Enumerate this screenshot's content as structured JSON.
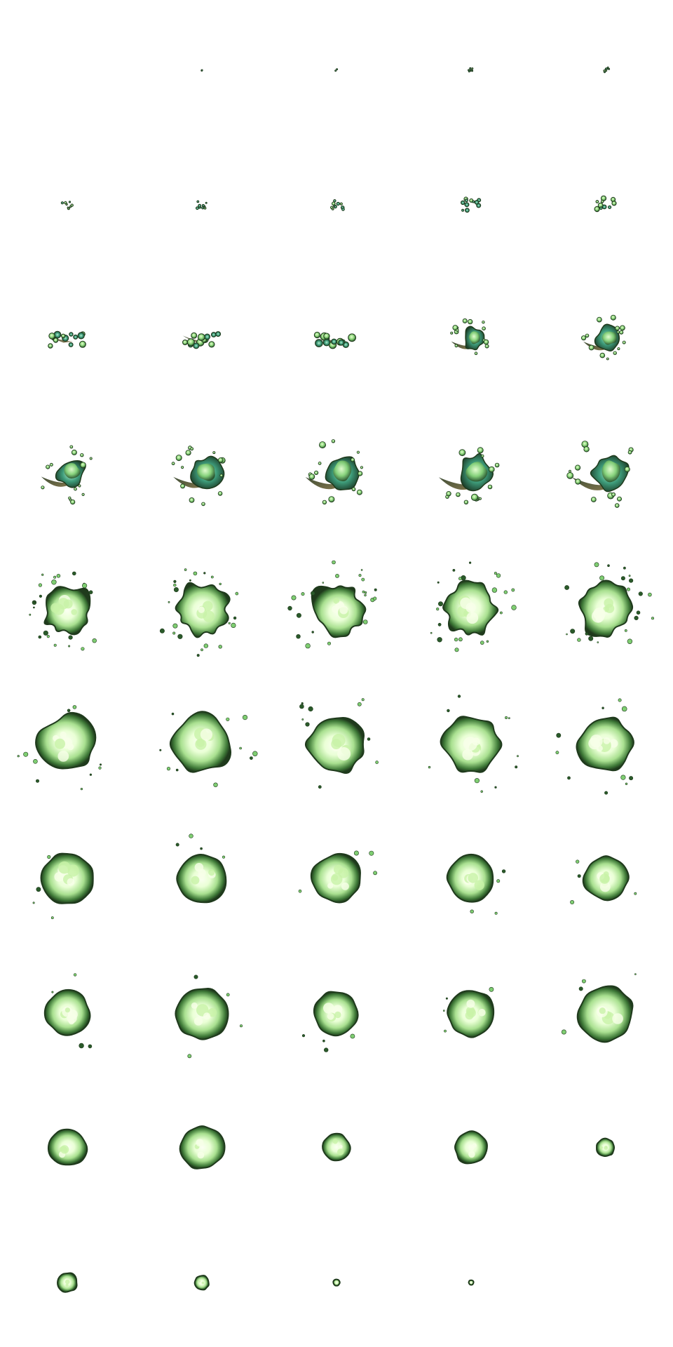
{
  "sprite_sheet": {
    "background": "#ffffff",
    "columns": 5,
    "rows": 10,
    "palette": {
      "rim": "#1f3a1c",
      "glow": "#f7ffe8",
      "light_green": "#c8f2a8",
      "mid_green": "#7fce72",
      "teal": "#3e9c7a",
      "dark_green": "#2a5a2a",
      "brown": "#5b4a2a"
    },
    "frames": [
      {
        "i": 0,
        "size": 0.0,
        "phase": "empty"
      },
      {
        "i": 1,
        "size": 0.01,
        "phase": "spark"
      },
      {
        "i": 2,
        "size": 0.03,
        "phase": "spark"
      },
      {
        "i": 3,
        "size": 0.05,
        "phase": "blobs"
      },
      {
        "i": 4,
        "size": 0.07,
        "phase": "blobs"
      },
      {
        "i": 5,
        "size": 0.09,
        "phase": "blobs"
      },
      {
        "i": 6,
        "size": 0.1,
        "phase": "blobs"
      },
      {
        "i": 7,
        "size": 0.12,
        "phase": "blobs"
      },
      {
        "i": 8,
        "size": 0.15,
        "phase": "blobs"
      },
      {
        "i": 9,
        "size": 0.18,
        "phase": "blobs"
      },
      {
        "i": 10,
        "size": 0.25,
        "phase": "stream"
      },
      {
        "i": 11,
        "size": 0.26,
        "phase": "stream"
      },
      {
        "i": 12,
        "size": 0.27,
        "phase": "stream"
      },
      {
        "i": 13,
        "size": 0.32,
        "phase": "swirl"
      },
      {
        "i": 14,
        "size": 0.36,
        "phase": "swirl"
      },
      {
        "i": 15,
        "size": 0.42,
        "phase": "swirl"
      },
      {
        "i": 16,
        "size": 0.46,
        "phase": "swirl"
      },
      {
        "i": 17,
        "size": 0.5,
        "phase": "swirl"
      },
      {
        "i": 18,
        "size": 0.52,
        "phase": "swirl"
      },
      {
        "i": 19,
        "size": 0.54,
        "phase": "swirl"
      },
      {
        "i": 20,
        "size": 0.6,
        "phase": "burst"
      },
      {
        "i": 21,
        "size": 0.62,
        "phase": "burst"
      },
      {
        "i": 22,
        "size": 0.62,
        "phase": "burst"
      },
      {
        "i": 23,
        "size": 0.62,
        "phase": "burst"
      },
      {
        "i": 24,
        "size": 0.64,
        "phase": "burst"
      },
      {
        "i": 25,
        "size": 0.7,
        "phase": "bright"
      },
      {
        "i": 26,
        "size": 0.72,
        "phase": "bright"
      },
      {
        "i": 27,
        "size": 0.72,
        "phase": "bright"
      },
      {
        "i": 28,
        "size": 0.7,
        "phase": "bright"
      },
      {
        "i": 29,
        "size": 0.66,
        "phase": "bright"
      },
      {
        "i": 30,
        "size": 0.62,
        "phase": "core"
      },
      {
        "i": 31,
        "size": 0.6,
        "phase": "core"
      },
      {
        "i": 32,
        "size": 0.6,
        "phase": "core"
      },
      {
        "i": 33,
        "size": 0.58,
        "phase": "core"
      },
      {
        "i": 34,
        "size": 0.54,
        "phase": "core"
      },
      {
        "i": 35,
        "size": 0.54,
        "phase": "core"
      },
      {
        "i": 36,
        "size": 0.64,
        "phase": "core"
      },
      {
        "i": 37,
        "size": 0.54,
        "phase": "core"
      },
      {
        "i": 38,
        "size": 0.58,
        "phase": "core"
      },
      {
        "i": 39,
        "size": 0.68,
        "phase": "core"
      },
      {
        "i": 40,
        "size": 0.46,
        "phase": "fade"
      },
      {
        "i": 41,
        "size": 0.54,
        "phase": "fade"
      },
      {
        "i": 42,
        "size": 0.34,
        "phase": "fade"
      },
      {
        "i": 43,
        "size": 0.4,
        "phase": "fade"
      },
      {
        "i": 44,
        "size": 0.22,
        "phase": "fade"
      },
      {
        "i": 45,
        "size": 0.24,
        "phase": "fade"
      },
      {
        "i": 46,
        "size": 0.18,
        "phase": "fade"
      },
      {
        "i": 47,
        "size": 0.08,
        "phase": "fade"
      },
      {
        "i": 48,
        "size": 0.06,
        "phase": "fade"
      },
      {
        "i": 49,
        "size": 0.0,
        "phase": "empty"
      }
    ]
  }
}
